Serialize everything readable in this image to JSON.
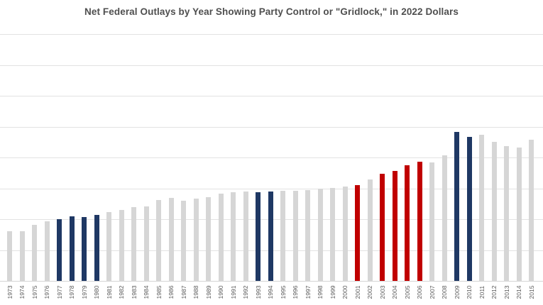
{
  "title": "Net Federal Outlays by Year Showing Party Control or \"Gridlock,\" in 2022 Dollars",
  "colors": {
    "democratic_control": "#1f3864",
    "republican_control": "#c00000",
    "gridlock": "#d6d6d6",
    "gridline": "#e2e2e2",
    "axis_line": "#d5d5d5",
    "title_text": "#4f4f4f",
    "tick_label_text": "#595959",
    "background": "#ffffff"
  },
  "chart_data": {
    "type": "bar",
    "title": "Net Federal Outlays by Year Showing Party Control or \"Gridlock,\" in 2022 Dollars",
    "xlabel": "",
    "ylabel": "",
    "ylim": [
      0,
      8
    ],
    "gridline_interval": 1,
    "grid": true,
    "legend_position": "none",
    "y_axis_labels_visible": false,
    "x_tick_label_rotation_degrees": 90,
    "categories": [
      1973,
      1974,
      1975,
      1976,
      1977,
      1978,
      1979,
      1980,
      1981,
      1982,
      1983,
      1984,
      1985,
      1986,
      1987,
      1988,
      1989,
      1990,
      1991,
      1992,
      1993,
      1994,
      1995,
      1996,
      1997,
      1998,
      1999,
      2000,
      2001,
      2002,
      2003,
      2004,
      2005,
      2006,
      2007,
      2008,
      2009,
      2010,
      2011,
      2012,
      2013,
      2014,
      2015
    ],
    "values": [
      1.62,
      1.61,
      1.81,
      1.93,
      2.01,
      2.09,
      2.07,
      2.13,
      2.22,
      2.3,
      2.38,
      2.41,
      2.62,
      2.68,
      2.6,
      2.66,
      2.72,
      2.82,
      2.87,
      2.9,
      2.87,
      2.89,
      2.93,
      2.93,
      2.94,
      2.99,
      3.02,
      3.06,
      3.11,
      3.29,
      3.46,
      3.57,
      3.74,
      3.87,
      3.85,
      4.08,
      4.83,
      4.66,
      4.74,
      4.51,
      4.36,
      4.33,
      4.58
    ],
    "party_control": [
      "gridlock",
      "gridlock",
      "gridlock",
      "gridlock",
      "democratic",
      "democratic",
      "democratic",
      "democratic",
      "gridlock",
      "gridlock",
      "gridlock",
      "gridlock",
      "gridlock",
      "gridlock",
      "gridlock",
      "gridlock",
      "gridlock",
      "gridlock",
      "gridlock",
      "gridlock",
      "democratic",
      "democratic",
      "gridlock",
      "gridlock",
      "gridlock",
      "gridlock",
      "gridlock",
      "gridlock",
      "republican",
      "gridlock",
      "republican",
      "republican",
      "republican",
      "republican",
      "gridlock",
      "gridlock",
      "democratic",
      "democratic",
      "gridlock",
      "gridlock",
      "gridlock",
      "gridlock",
      "gridlock"
    ]
  }
}
